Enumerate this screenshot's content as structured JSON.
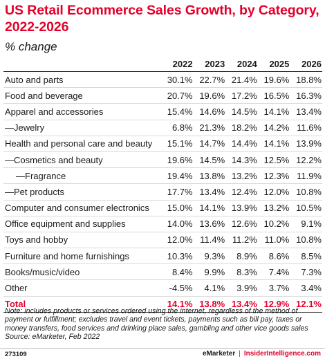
{
  "chart_data": {
    "type": "table",
    "title": "US Retail Ecommerce Sales Growth, by Category, 2022-2026",
    "subtitle": "% change",
    "columns": [
      "2022",
      "2023",
      "2024",
      "2025",
      "2026"
    ],
    "rows": [
      {
        "label": "Auto and parts",
        "indent": 0,
        "values": [
          "30.1%",
          "22.7%",
          "21.4%",
          "19.6%",
          "18.8%"
        ]
      },
      {
        "label": "Food and beverage",
        "indent": 0,
        "values": [
          "20.7%",
          "19.6%",
          "17.2%",
          "16.5%",
          "16.3%"
        ]
      },
      {
        "label": "Apparel and accessories",
        "indent": 0,
        "values": [
          "15.4%",
          "14.6%",
          "14.5%",
          "14.1%",
          "13.4%"
        ]
      },
      {
        "label": "—Jewelry",
        "indent": 1,
        "values": [
          "6.8%",
          "21.3%",
          "18.2%",
          "14.2%",
          "11.6%"
        ]
      },
      {
        "label": "Health and personal care and beauty",
        "indent": 0,
        "values": [
          "15.1%",
          "14.7%",
          "14.4%",
          "14.1%",
          "13.9%"
        ]
      },
      {
        "label": "—Cosmetics and beauty",
        "indent": 1,
        "values": [
          "19.6%",
          "14.5%",
          "14.3%",
          "12.5%",
          "12.2%"
        ]
      },
      {
        "label": "—Fragrance",
        "indent": 2,
        "values": [
          "19.4%",
          "13.8%",
          "13.2%",
          "12.3%",
          "11.9%"
        ]
      },
      {
        "label": "—Pet products",
        "indent": 1,
        "values": [
          "17.7%",
          "13.4%",
          "12.4%",
          "12.0%",
          "10.8%"
        ]
      },
      {
        "label": "Computer and consumer electronics",
        "indent": 0,
        "values": [
          "15.0%",
          "14.1%",
          "13.9%",
          "13.2%",
          "10.5%"
        ]
      },
      {
        "label": "Office equipment and supplies",
        "indent": 0,
        "values": [
          "14.0%",
          "13.6%",
          "12.6%",
          "10.2%",
          "9.1%"
        ]
      },
      {
        "label": "Toys and hobby",
        "indent": 0,
        "values": [
          "12.0%",
          "11.4%",
          "11.2%",
          "11.0%",
          "10.8%"
        ]
      },
      {
        "label": "Furniture and home furnishings",
        "indent": 0,
        "values": [
          "10.3%",
          "9.3%",
          "8.9%",
          "8.6%",
          "8.5%"
        ]
      },
      {
        "label": "Books/music/video",
        "indent": 0,
        "values": [
          "8.4%",
          "9.9%",
          "8.3%",
          "7.4%",
          "7.3%"
        ]
      },
      {
        "label": "Other",
        "indent": 0,
        "values": [
          "-4.5%",
          "4.1%",
          "3.9%",
          "3.7%",
          "3.4%"
        ]
      }
    ],
    "total": {
      "label": "Total",
      "values": [
        "14.1%",
        "13.8%",
        "13.4%",
        "12.9%",
        "12.1%"
      ]
    }
  },
  "note": "Note: includes products or services ordered using the internet, regardless of the method of payment or fulfillment; excludes travel and event tickets, payments such as bill pay, taxes or money transfers, food services and drinking place sales, gambling and other vice goods sales",
  "source": "Source: eMarketer, Feb 2022",
  "footer": {
    "chart_id": "273109",
    "brand_1": "eMarketer",
    "separator": "|",
    "brand_2": "InsiderIntelligence.com"
  },
  "colors": {
    "accent": "#e4002b",
    "text": "#1a1a1a",
    "rule": "#d9d9d9"
  }
}
